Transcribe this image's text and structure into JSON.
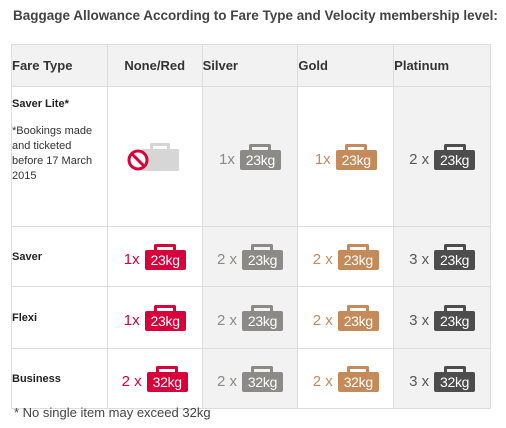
{
  "title": "Baggage Allowance According to Fare Type and Velocity membership level:",
  "headers": {
    "fare_type": "Fare Type",
    "none_red": "None/Red",
    "silver": "Silver",
    "gold": "Gold",
    "platinum": "Platinum"
  },
  "colors": {
    "none_red": "#d8003a",
    "silver": "#8c8a86",
    "gold": "#c58a5a",
    "platinum": "#4d4d4d",
    "not_included": "#d6d6d6"
  },
  "icons": {
    "bag": "suitcase-icon",
    "not_allowed": "no-entry-icon"
  },
  "rows": [
    {
      "fare": "Saver Lite*",
      "note": "*Bookings made and ticketed before 17 March 2015",
      "none_red": {
        "qty": "",
        "weight": ""
      },
      "silver": {
        "qty": "1x",
        "weight": "23kg"
      },
      "gold": {
        "qty": "1x",
        "weight": "23kg"
      },
      "platinum": {
        "qty": "2 x",
        "weight": "23kg"
      }
    },
    {
      "fare": "Saver",
      "none_red": {
        "qty": "1x",
        "weight": "23kg"
      },
      "silver": {
        "qty": "2 x",
        "weight": "23kg"
      },
      "gold": {
        "qty": "2 x",
        "weight": "23kg"
      },
      "platinum": {
        "qty": "3 x",
        "weight": "23kg"
      }
    },
    {
      "fare": "Flexi",
      "none_red": {
        "qty": "1x",
        "weight": "23kg"
      },
      "silver": {
        "qty": "2 x",
        "weight": "23kg"
      },
      "gold": {
        "qty": "2 x",
        "weight": "23kg"
      },
      "platinum": {
        "qty": "3 x",
        "weight": "23kg"
      }
    },
    {
      "fare": "Business",
      "none_red": {
        "qty": "2 x",
        "weight": "32kg"
      },
      "silver": {
        "qty": "2 x",
        "weight": "32kg"
      },
      "gold": {
        "qty": "2 x",
        "weight": "32kg"
      },
      "platinum": {
        "qty": "3 x",
        "weight": "32kg"
      }
    }
  ],
  "footnote": "* No single item may exceed 32kg"
}
